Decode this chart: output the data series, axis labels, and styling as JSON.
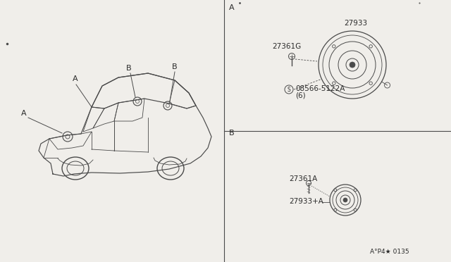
{
  "bg_color": "#f0eeea",
  "line_color": "#4a4a4a",
  "text_color": "#2a2a2a",
  "part_numbers": {
    "speaker_large": "27933",
    "screw_large": "27361G",
    "bolt_large": "08566-5122A",
    "bolt_large_qty": "(6)",
    "screw_small": "27361A",
    "speaker_small": "27933+A"
  },
  "diagram_code": "A°P4★ 0135"
}
